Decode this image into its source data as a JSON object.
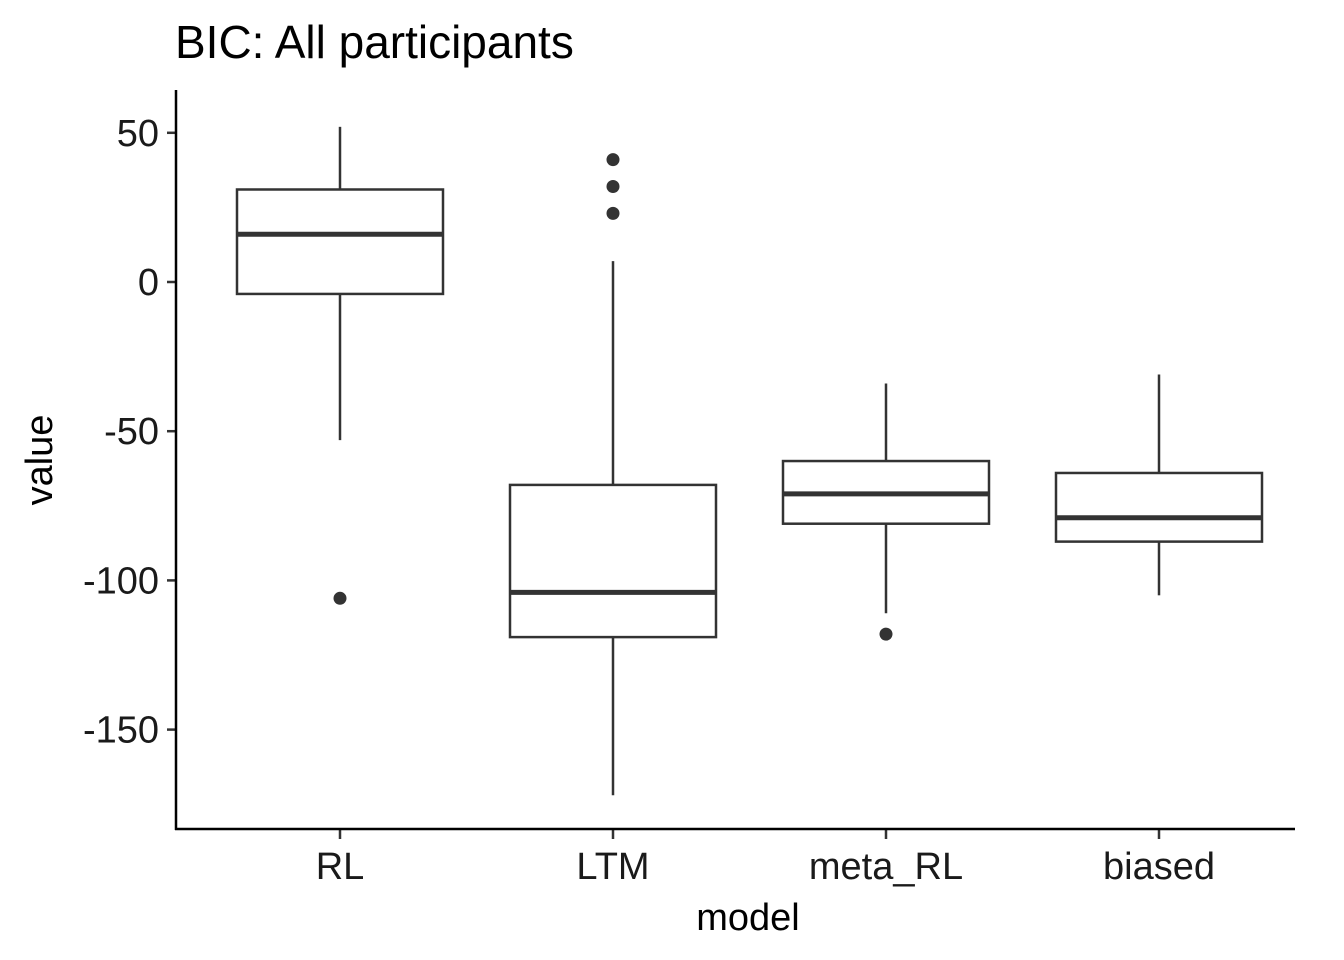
{
  "chart_data": {
    "type": "box",
    "title": "BIC: All participants",
    "xlabel": "model",
    "ylabel": "value",
    "categories": [
      "RL",
      "LTM",
      "meta_RL",
      "biased"
    ],
    "ylim": [
      -180,
      64
    ],
    "yticks": [
      50,
      0,
      -50,
      -100,
      -150
    ],
    "ytick_labels": [
      "50",
      "0",
      "-50",
      "-100",
      "-150"
    ],
    "grid": false,
    "legend": "none",
    "boxes": [
      {
        "category": "RL",
        "whisker_low": -53,
        "q1": -4,
        "median": 16,
        "q3": 31,
        "whisker_high": 52,
        "outliers": [
          -106
        ]
      },
      {
        "category": "LTM",
        "whisker_low": -172,
        "q1": -119,
        "median": -104,
        "q3": -68,
        "whisker_high": 7,
        "outliers": [
          23,
          32,
          41
        ]
      },
      {
        "category": "meta_RL",
        "whisker_low": -111,
        "q1": -81,
        "median": -71,
        "q3": -60,
        "whisker_high": -34,
        "outliers": [
          -118
        ]
      },
      {
        "category": "biased",
        "whisker_low": -105,
        "q1": -87,
        "median": -79,
        "q3": -64,
        "whisker_high": -31,
        "outliers": []
      }
    ],
    "colors": {
      "box_line": "#333333",
      "box_fill": "#ffffff",
      "axis": "#000000"
    }
  }
}
